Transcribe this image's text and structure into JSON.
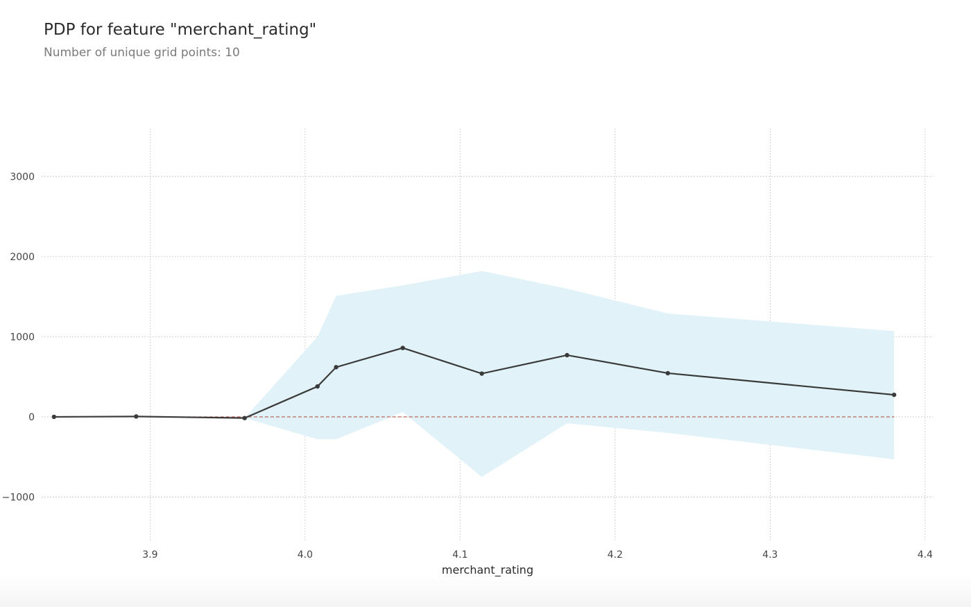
{
  "title": "PDP for feature \"merchant_rating\"",
  "subtitle": "Number of unique grid points: 10",
  "chart_data": {
    "type": "line",
    "title": "PDP for feature \"merchant_rating\"",
    "subtitle": "Number of unique grid points: 10",
    "xlabel": "merchant_rating",
    "ylabel": "",
    "xlim": [
      3.83,
      4.405
    ],
    "ylim": [
      -1550,
      3600
    ],
    "xticks": [
      3.9,
      4.0,
      4.1,
      4.2,
      4.3,
      4.4
    ],
    "xtick_labels": [
      "3.9",
      "4.0",
      "4.1",
      "4.2",
      "4.3",
      "4.4"
    ],
    "yticks": [
      -1000,
      0,
      1000,
      2000,
      3000
    ],
    "ytick_labels": [
      "−1000",
      "0",
      "1000",
      "2000",
      "3000"
    ],
    "grid": true,
    "series": [
      {
        "x": [
          3.838,
          3.891,
          3.961,
          4.008,
          4.02,
          4.063,
          4.114,
          4.169,
          4.234,
          4.38
        ],
        "values": [
          0,
          5,
          -15,
          380,
          620,
          860,
          540,
          770,
          545,
          275
        ],
        "upper": [
          0,
          5,
          -15,
          1000,
          1510,
          1640,
          1820,
          1600,
          1290,
          1070
        ],
        "lower": [
          0,
          5,
          -15,
          -280,
          -280,
          60,
          -750,
          -80,
          -200,
          -530
        ]
      }
    ],
    "reference_line": 0,
    "colors": {
      "line": "#3a3a3a",
      "band": "#e1f3f8",
      "reference": "#b5574a",
      "grid": "#c8c8c8"
    }
  }
}
